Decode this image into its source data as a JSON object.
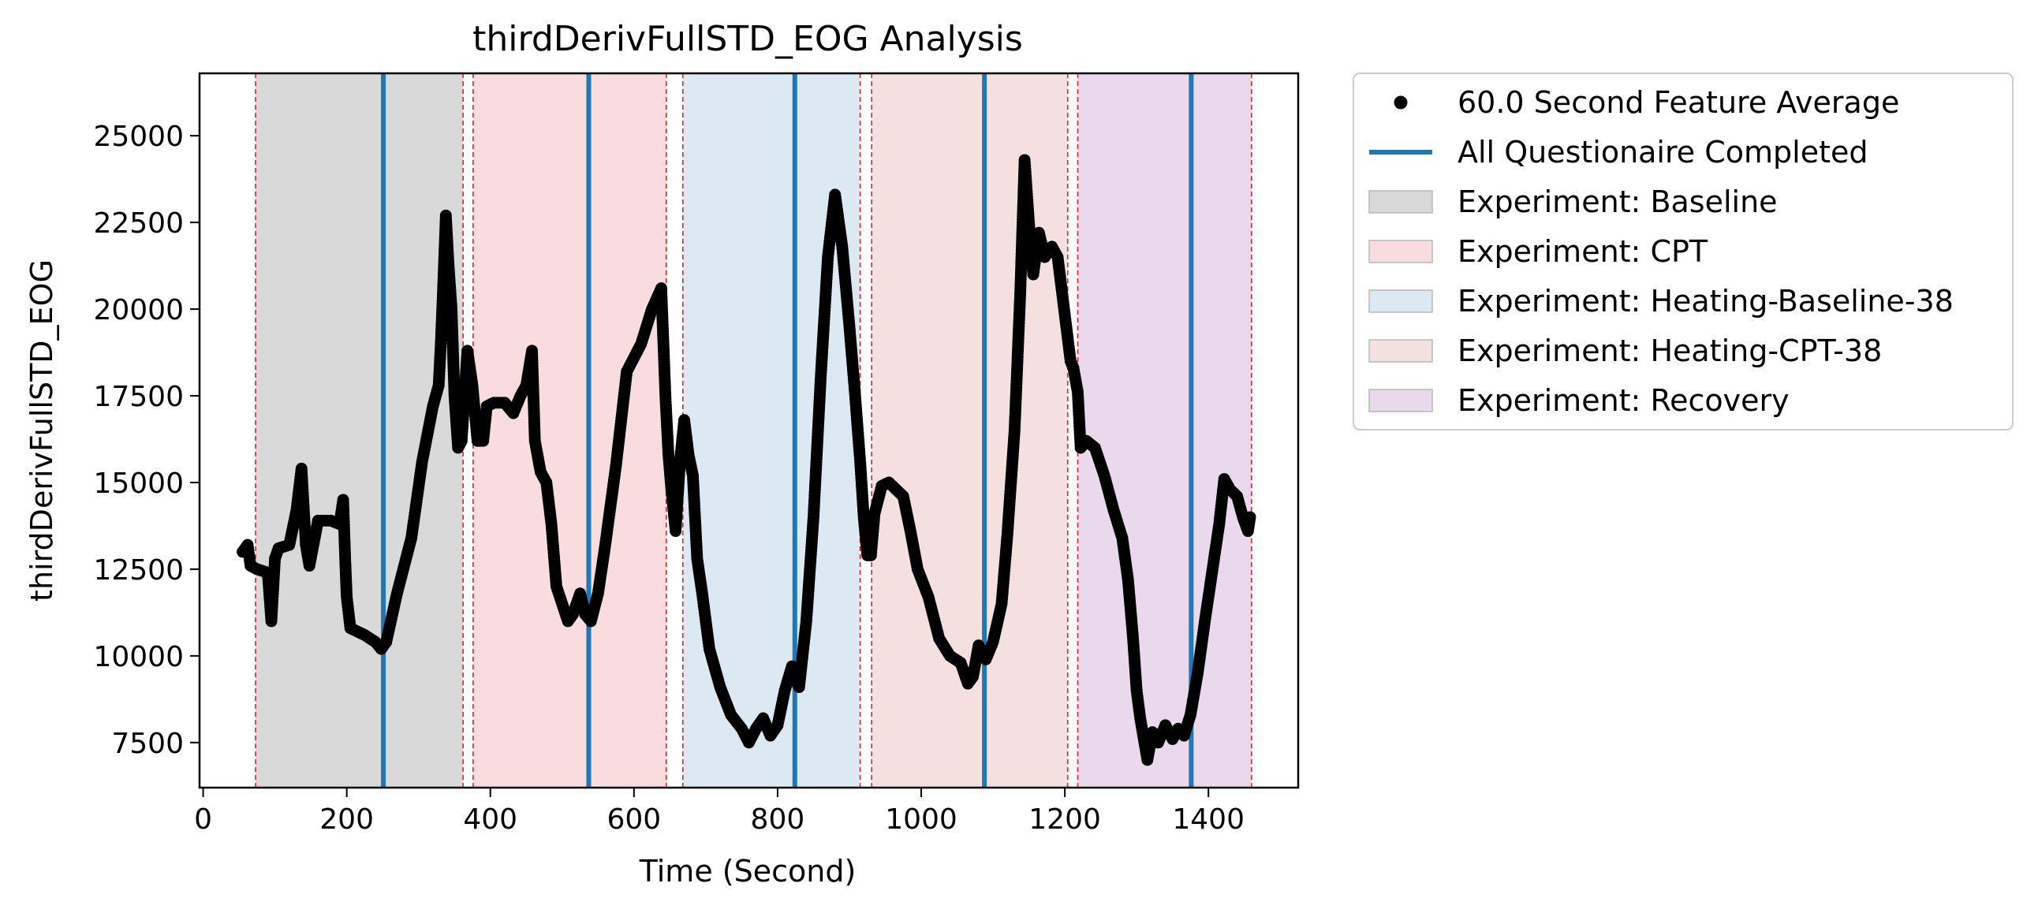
{
  "chart_data": {
    "type": "scatter",
    "title": "thirdDerivFullSTD_EOG Analysis",
    "xlabel": "Time (Second)",
    "ylabel": "thirdDerivFullSTD_EOG",
    "xlim": [
      -5,
      1525
    ],
    "ylim": [
      6200,
      26800
    ],
    "xticks": [
      0,
      200,
      400,
      600,
      800,
      1000,
      1200,
      1400
    ],
    "yticks": [
      7500,
      10000,
      12500,
      15000,
      17500,
      20000,
      22500,
      25000
    ],
    "grid": false,
    "legend_position": "outside-right-top",
    "series": [
      {
        "name": "60.0 Second Feature Average",
        "style": "dots",
        "color": "#000000",
        "anchors": [
          [
            55,
            13000
          ],
          [
            62,
            13200
          ],
          [
            66,
            12600
          ],
          [
            75,
            12500
          ],
          [
            90,
            12400
          ],
          [
            95,
            11000
          ],
          [
            100,
            12800
          ],
          [
            105,
            13100
          ],
          [
            120,
            13200
          ],
          [
            130,
            14200
          ],
          [
            137,
            15400
          ],
          [
            143,
            13200
          ],
          [
            148,
            12600
          ],
          [
            160,
            13900
          ],
          [
            178,
            13900
          ],
          [
            190,
            13800
          ],
          [
            195,
            14500
          ],
          [
            198,
            12700
          ],
          [
            200,
            11700
          ],
          [
            205,
            10800
          ],
          [
            215,
            10700
          ],
          [
            225,
            10600
          ],
          [
            240,
            10400
          ],
          [
            248,
            10200
          ],
          [
            255,
            10400
          ],
          [
            270,
            11800
          ],
          [
            290,
            13400
          ],
          [
            305,
            15600
          ],
          [
            320,
            17200
          ],
          [
            328,
            17800
          ],
          [
            331,
            19000
          ],
          [
            334,
            20500
          ],
          [
            338,
            22700
          ],
          [
            342,
            21200
          ],
          [
            346,
            20000
          ],
          [
            350,
            17500
          ],
          [
            355,
            16000
          ],
          [
            360,
            16200
          ],
          [
            368,
            18800
          ],
          [
            375,
            17800
          ],
          [
            382,
            16200
          ],
          [
            390,
            16200
          ],
          [
            395,
            17200
          ],
          [
            405,
            17300
          ],
          [
            420,
            17300
          ],
          [
            432,
            17000
          ],
          [
            442,
            17500
          ],
          [
            450,
            17800
          ],
          [
            458,
            18800
          ],
          [
            462,
            16200
          ],
          [
            470,
            15300
          ],
          [
            478,
            15000
          ],
          [
            485,
            13800
          ],
          [
            492,
            12000
          ],
          [
            500,
            11500
          ],
          [
            508,
            11000
          ],
          [
            515,
            11200
          ],
          [
            525,
            11800
          ],
          [
            532,
            11200
          ],
          [
            540,
            11000
          ],
          [
            550,
            11800
          ],
          [
            560,
            13200
          ],
          [
            575,
            15500
          ],
          [
            590,
            18200
          ],
          [
            610,
            19000
          ],
          [
            625,
            20000
          ],
          [
            638,
            20600
          ],
          [
            644,
            17400
          ],
          [
            648,
            15800
          ],
          [
            652,
            14800
          ],
          [
            658,
            13600
          ],
          [
            664,
            15600
          ],
          [
            670,
            16800
          ],
          [
            676,
            15800
          ],
          [
            682,
            15200
          ],
          [
            688,
            12800
          ],
          [
            695,
            11800
          ],
          [
            705,
            10200
          ],
          [
            720,
            9100
          ],
          [
            735,
            8300
          ],
          [
            750,
            7900
          ],
          [
            760,
            7500
          ],
          [
            770,
            7900
          ],
          [
            780,
            8200
          ],
          [
            790,
            7700
          ],
          [
            800,
            8000
          ],
          [
            810,
            9000
          ],
          [
            820,
            9700
          ],
          [
            825,
            9300
          ],
          [
            830,
            9100
          ],
          [
            840,
            11000
          ],
          [
            850,
            14000
          ],
          [
            860,
            18000
          ],
          [
            870,
            21500
          ],
          [
            880,
            23300
          ],
          [
            890,
            21800
          ],
          [
            900,
            19500
          ],
          [
            908,
            17500
          ],
          [
            915,
            15600
          ],
          [
            920,
            14000
          ],
          [
            925,
            12900
          ],
          [
            930,
            12900
          ],
          [
            935,
            14100
          ],
          [
            945,
            14900
          ],
          [
            955,
            15000
          ],
          [
            965,
            14800
          ],
          [
            975,
            14600
          ],
          [
            985,
            13600
          ],
          [
            995,
            12500
          ],
          [
            1010,
            11700
          ],
          [
            1025,
            10500
          ],
          [
            1040,
            10000
          ],
          [
            1055,
            9800
          ],
          [
            1065,
            9200
          ],
          [
            1072,
            9400
          ],
          [
            1080,
            10300
          ],
          [
            1090,
            9900
          ],
          [
            1100,
            10400
          ],
          [
            1112,
            11500
          ],
          [
            1120,
            13500
          ],
          [
            1130,
            16500
          ],
          [
            1138,
            20500
          ],
          [
            1144,
            24300
          ],
          [
            1150,
            22500
          ],
          [
            1156,
            21000
          ],
          [
            1164,
            22200
          ],
          [
            1172,
            21500
          ],
          [
            1182,
            21800
          ],
          [
            1190,
            21500
          ],
          [
            1196,
            20500
          ],
          [
            1202,
            19500
          ],
          [
            1208,
            18500
          ],
          [
            1212,
            18300
          ],
          [
            1218,
            17600
          ],
          [
            1222,
            16000
          ],
          [
            1230,
            16200
          ],
          [
            1242,
            16000
          ],
          [
            1255,
            15200
          ],
          [
            1268,
            14200
          ],
          [
            1280,
            13400
          ],
          [
            1288,
            12200
          ],
          [
            1295,
            10500
          ],
          [
            1300,
            9000
          ],
          [
            1305,
            8200
          ],
          [
            1310,
            7600
          ],
          [
            1315,
            7000
          ],
          [
            1322,
            7800
          ],
          [
            1330,
            7500
          ],
          [
            1340,
            8000
          ],
          [
            1350,
            7600
          ],
          [
            1358,
            7900
          ],
          [
            1366,
            7700
          ],
          [
            1375,
            8300
          ],
          [
            1385,
            9500
          ],
          [
            1395,
            11000
          ],
          [
            1405,
            12400
          ],
          [
            1415,
            13800
          ],
          [
            1422,
            15100
          ],
          [
            1430,
            14800
          ],
          [
            1440,
            14600
          ],
          [
            1448,
            14000
          ],
          [
            1455,
            13600
          ],
          [
            1458,
            14000
          ]
        ]
      },
      {
        "name": "All Questionaire Completed",
        "style": "vertical-lines",
        "color": "#1f77b4",
        "x": [
          251,
          537,
          824,
          1088,
          1376
        ]
      }
    ],
    "bands": [
      {
        "name": "Experiment: Baseline",
        "color": "#d9d9d9",
        "ranges": [
          [
            73,
            362
          ]
        ]
      },
      {
        "name": "Experiment: CPT",
        "color": "#f9dcdd",
        "ranges": [
          [
            376,
            645
          ]
        ]
      },
      {
        "name": "Experiment: Heating-Baseline-38",
        "color": "#dce9f3",
        "ranges": [
          [
            668,
            915
          ]
        ]
      },
      {
        "name": "Experiment: Heating-CPT-38",
        "color": "#f3e0df",
        "ranges": [
          [
            931,
            1204
          ]
        ]
      },
      {
        "name": "Experiment: Recovery",
        "color": "#ead9ed",
        "ranges": [
          [
            1218,
            1460
          ]
        ]
      }
    ],
    "boundary_lines": {
      "color": "#d62728",
      "x": [
        73,
        362,
        376,
        645,
        668,
        915,
        931,
        1204,
        1218,
        1460
      ]
    }
  }
}
